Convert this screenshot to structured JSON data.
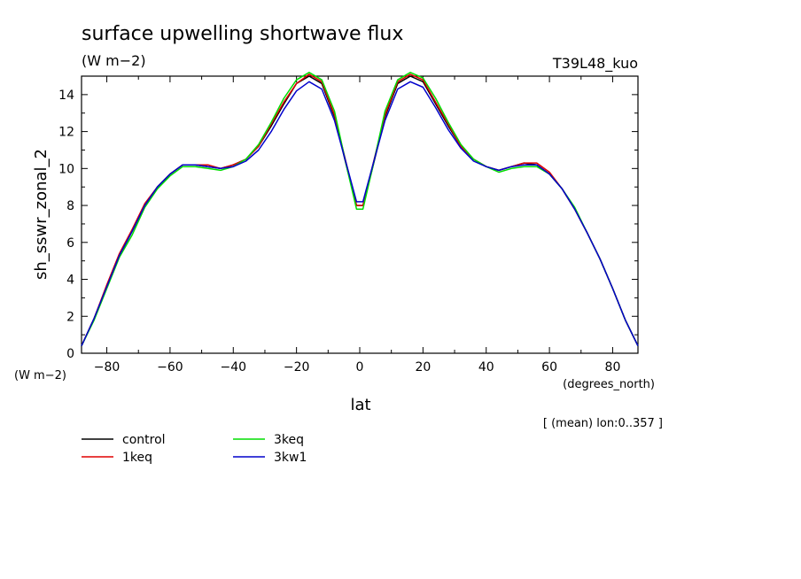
{
  "chart_data": {
    "type": "line",
    "title": "surface upwelling shortwave flux",
    "units_label": "(W m−2)",
    "run_label": "T39L48_kuo",
    "ylabel": "sh_sswr_zonal_2",
    "yunits": "(W m−2)",
    "xlabel": "lat",
    "xunits": "(degrees_north)",
    "annotation": "[ (mean) lon:0..357 ]",
    "xlim": [
      -88,
      88
    ],
    "ylim": [
      0,
      15
    ],
    "xticks": [
      -80,
      -60,
      -40,
      -20,
      0,
      20,
      40,
      60,
      80
    ],
    "yticks": [
      0,
      2,
      4,
      6,
      8,
      10,
      12,
      14
    ],
    "grid": false,
    "legend_position": "bottom-left",
    "x": [
      -88,
      -84,
      -80,
      -76,
      -72,
      -68,
      -64,
      -60,
      -56,
      -52,
      -48,
      -44,
      -40,
      -36,
      -32,
      -28,
      -24,
      -20,
      -16,
      -12,
      -8,
      -4,
      -1,
      1,
      4,
      8,
      12,
      16,
      20,
      24,
      28,
      32,
      36,
      40,
      44,
      48,
      52,
      56,
      60,
      64,
      68,
      72,
      76,
      80,
      84,
      88
    ],
    "series": [
      {
        "name": "control",
        "color": "#000000",
        "values": [
          0.4,
          1.9,
          3.6,
          5.3,
          6.6,
          8.0,
          9.0,
          9.7,
          10.2,
          10.2,
          10.1,
          10.0,
          10.2,
          10.5,
          11.2,
          12.3,
          13.5,
          14.6,
          15.0,
          14.6,
          12.8,
          10.0,
          8.0,
          8.0,
          10.0,
          12.8,
          14.6,
          15.0,
          14.7,
          13.5,
          12.3,
          11.2,
          10.5,
          10.1,
          9.9,
          10.1,
          10.3,
          10.2,
          9.7,
          8.9,
          7.8,
          6.5,
          5.1,
          3.5,
          1.8,
          0.4
        ]
      },
      {
        "name": "1keq",
        "color": "#e00000",
        "values": [
          0.4,
          1.9,
          3.7,
          5.4,
          6.7,
          8.1,
          9.0,
          9.7,
          10.2,
          10.2,
          10.2,
          10.0,
          10.2,
          10.5,
          11.2,
          12.4,
          13.6,
          14.6,
          15.1,
          14.7,
          12.9,
          10.1,
          8.0,
          8.0,
          10.1,
          12.9,
          14.7,
          15.1,
          14.8,
          13.6,
          12.4,
          11.2,
          10.5,
          10.1,
          9.9,
          10.1,
          10.3,
          10.3,
          9.8,
          8.9,
          7.8,
          6.5,
          5.1,
          3.5,
          1.8,
          0.4
        ]
      },
      {
        "name": "3keq",
        "color": "#00dd00",
        "values": [
          0.4,
          1.8,
          3.5,
          5.2,
          6.4,
          7.9,
          8.9,
          9.6,
          10.1,
          10.1,
          10.0,
          9.9,
          10.1,
          10.5,
          11.3,
          12.5,
          13.8,
          14.8,
          15.2,
          14.8,
          13.1,
          10.0,
          7.8,
          7.8,
          10.0,
          13.1,
          14.8,
          15.2,
          14.9,
          13.8,
          12.5,
          11.3,
          10.5,
          10.1,
          9.8,
          10.0,
          10.1,
          10.1,
          9.7,
          8.9,
          7.9,
          6.5,
          5.1,
          3.5,
          1.8,
          0.4
        ]
      },
      {
        "name": "3kw1",
        "color": "#0000cc",
        "values": [
          0.4,
          1.9,
          3.6,
          5.3,
          6.6,
          8.0,
          9.0,
          9.7,
          10.2,
          10.2,
          10.1,
          10.0,
          10.1,
          10.4,
          11.0,
          12.0,
          13.2,
          14.2,
          14.7,
          14.3,
          12.6,
          10.1,
          8.2,
          8.2,
          10.1,
          12.6,
          14.3,
          14.7,
          14.4,
          13.3,
          12.1,
          11.1,
          10.4,
          10.1,
          9.9,
          10.1,
          10.2,
          10.2,
          9.7,
          8.9,
          7.8,
          6.5,
          5.1,
          3.5,
          1.8,
          0.4
        ]
      }
    ]
  }
}
